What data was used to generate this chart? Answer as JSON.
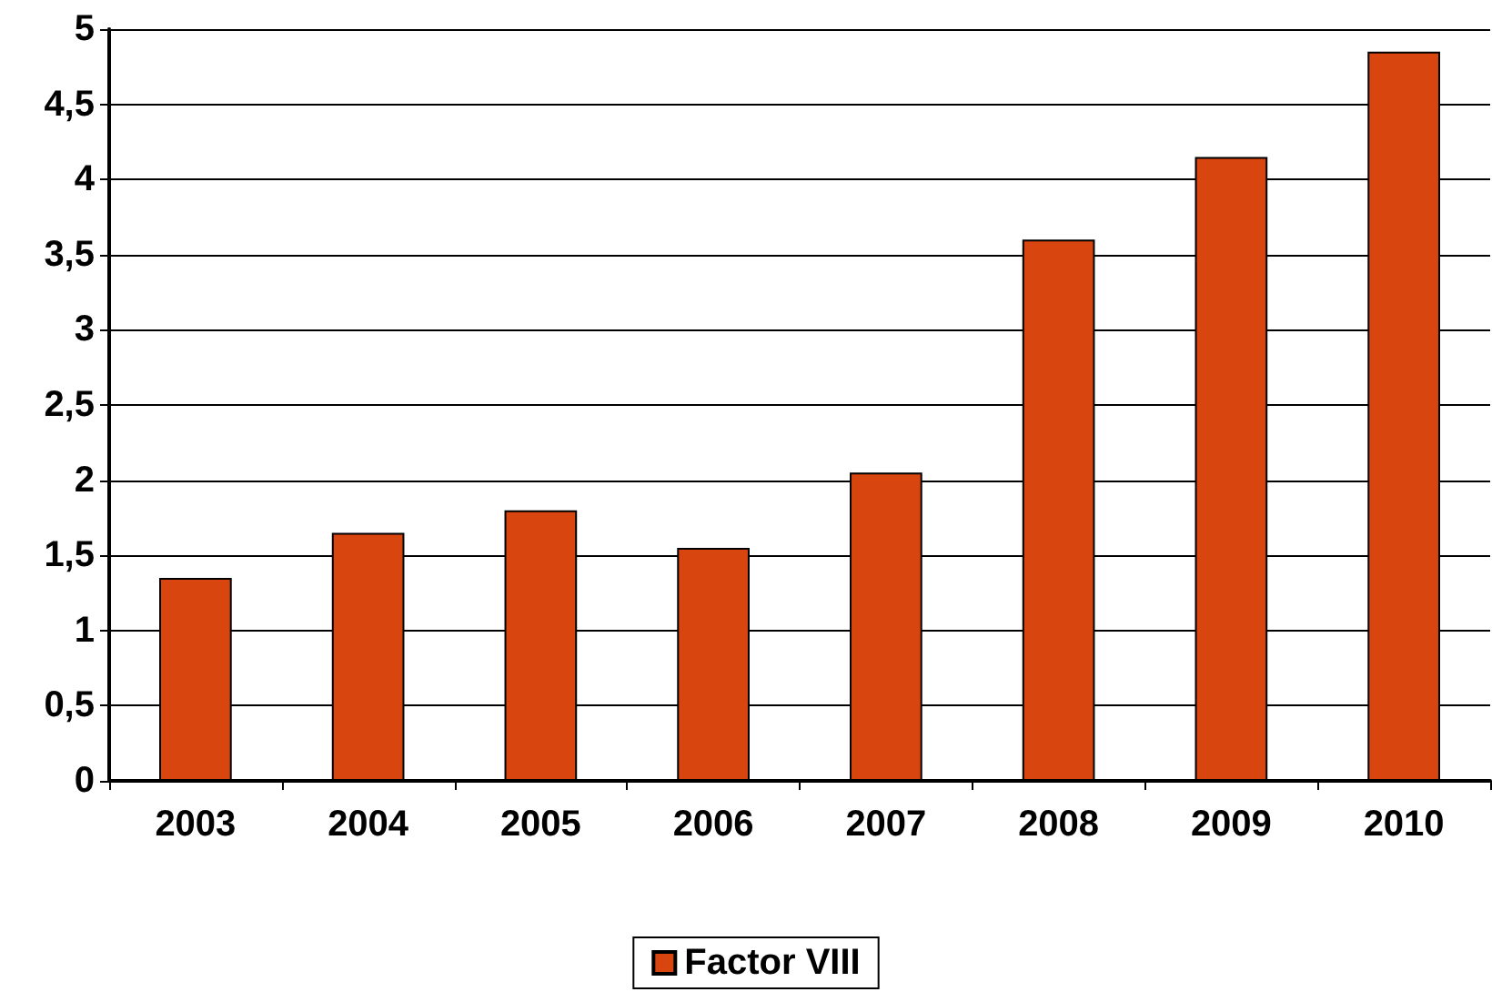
{
  "chart_data": {
    "type": "bar",
    "categories": [
      "2003",
      "2004",
      "2005",
      "2006",
      "2007",
      "2008",
      "2009",
      "2010"
    ],
    "series": [
      {
        "name": "Factor VIII",
        "color": "#d9450f",
        "values": [
          1.35,
          1.65,
          1.8,
          1.55,
          2.05,
          3.6,
          4.15,
          4.85
        ]
      }
    ],
    "ylim": [
      0,
      5
    ],
    "yticks": [
      0,
      {
        "value": 0.5,
        "label": "0,5"
      },
      1,
      {
        "value": 1.5,
        "label": "1,5"
      },
      2,
      {
        "value": 2.5,
        "label": "2,5"
      },
      3,
      {
        "value": 3.5,
        "label": "3,5"
      },
      4,
      {
        "value": 4.5,
        "label": "4,5"
      },
      5
    ],
    "grid": "y",
    "legend": "bottom"
  }
}
